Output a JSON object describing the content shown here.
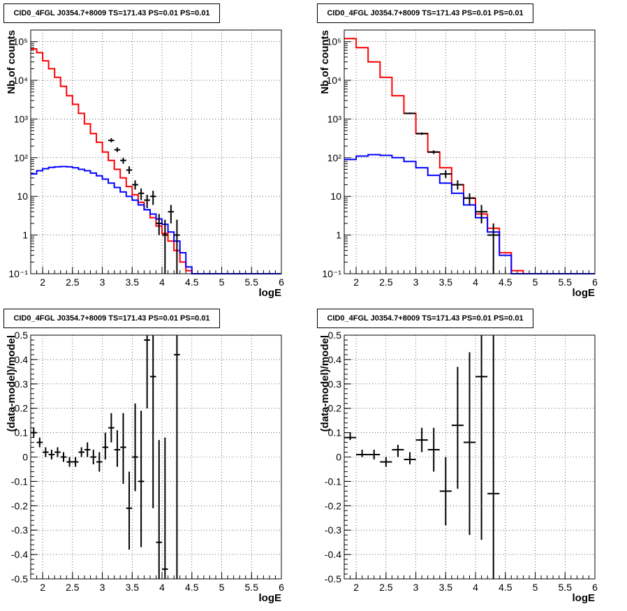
{
  "colors": {
    "total": "#ff0000",
    "component": "#0000ff",
    "data": "#000000"
  },
  "chart_data": [
    {
      "type": "line",
      "title": "CID0_4FGL J0354.7+8009 TS=171.43 PS=0.01 PS=0.01",
      "xlabel": "logE",
      "ylabel": "Nb of counts",
      "xlim": [
        1.8,
        6.0
      ],
      "ylim": [
        0.1,
        200000
      ],
      "yscale": "log",
      "grid": true,
      "xticks": [
        "2",
        "2.5",
        "3",
        "3.5",
        "4",
        "4.5",
        "5",
        "5.5",
        "6"
      ],
      "yticks": [
        "10^-1",
        "1",
        "10",
        "10^2",
        "10^3",
        "10^4",
        "10^5"
      ],
      "bin_edges": [
        1.8,
        1.9,
        2.0,
        2.1,
        2.2,
        2.3,
        2.4,
        2.5,
        2.6,
        2.7,
        2.8,
        2.9,
        3.0,
        3.1,
        3.2,
        3.3,
        3.4,
        3.5,
        3.6,
        3.7,
        3.8,
        3.9,
        4.0,
        4.1,
        4.2,
        4.3,
        4.4,
        4.5,
        4.6,
        4.7,
        4.8,
        4.9,
        5.0,
        5.1,
        5.2,
        5.3,
        5.4,
        5.5,
        5.6,
        5.7,
        5.8,
        5.9,
        6.0
      ],
      "series": [
        {
          "values": [
            65000,
            52000,
            32000,
            20000,
            12000,
            7000,
            4000,
            2400,
            1400,
            750,
            420,
            250,
            140,
            85,
            50,
            30,
            18,
            11,
            7,
            4.5,
            2.8,
            1.7,
            1.1,
            0.7,
            0.4,
            0.2,
            0.12,
            0.1,
            0.1,
            0.1,
            0.1,
            0.1,
            0.1,
            0.1,
            0.1,
            0.1,
            0.1,
            0.1,
            0.1,
            0.1,
            0.1,
            0.1
          ]
        },
        {
          "values": [
            38,
            46,
            52,
            56,
            58,
            59,
            58,
            55,
            50,
            46,
            40,
            34,
            28,
            22,
            17,
            13,
            10,
            8,
            6,
            4.5,
            3.5,
            2.6,
            1.9,
            1.2,
            0.7,
            0.35,
            0.15,
            0.1,
            0.1,
            0.1,
            0.1,
            0.1,
            0.1,
            0.1,
            0.1,
            0.1,
            0.1,
            0.1,
            0.1,
            0.1,
            0.1,
            0.1
          ]
        }
      ],
      "points": [
        {
          "x": 3.15,
          "y": 280,
          "ex": 0.05,
          "ylo": 250,
          "yhi": 320
        },
        {
          "x": 3.25,
          "y": 160,
          "ex": 0.05,
          "ylo": 140,
          "yhi": 185
        },
        {
          "x": 3.35,
          "y": 85,
          "ex": 0.05,
          "ylo": 70,
          "yhi": 100
        },
        {
          "x": 3.45,
          "y": 48,
          "ex": 0.05,
          "ylo": 38,
          "yhi": 60
        },
        {
          "x": 3.55,
          "y": 20,
          "ex": 0.05,
          "ylo": 15,
          "yhi": 26
        },
        {
          "x": 3.65,
          "y": 12,
          "ex": 0.05,
          "ylo": 8,
          "yhi": 16
        },
        {
          "x": 3.75,
          "y": 8,
          "ex": 0.05,
          "ylo": 5,
          "yhi": 11
        },
        {
          "x": 3.85,
          "y": 10,
          "ex": 0.05,
          "ylo": 6,
          "yhi": 14
        },
        {
          "x": 3.95,
          "y": 2,
          "ex": 0.05,
          "ylo": 1,
          "yhi": 3.5
        },
        {
          "x": 4.05,
          "y": 1,
          "ex": 0.05,
          "ylo": 0.1,
          "yhi": 2.5
        },
        {
          "x": 4.15,
          "y": 4,
          "ex": 0.05,
          "ylo": 2,
          "yhi": 6
        },
        {
          "x": 4.25,
          "y": 1,
          "ex": 0.05,
          "ylo": 0.1,
          "yhi": 2.5
        }
      ]
    },
    {
      "type": "line",
      "title": "CID0_4FGL J0354.7+8009 TS=171.43 PS=0.01 PS=0.01",
      "xlabel": "logE",
      "ylabel": "Nb of counts",
      "xlim": [
        1.8,
        6.0
      ],
      "ylim": [
        0.1,
        200000
      ],
      "yscale": "log",
      "grid": true,
      "xticks": [
        "2",
        "2.5",
        "3",
        "3.5",
        "4",
        "4.5",
        "5",
        "5.5",
        "6"
      ],
      "yticks": [
        "10^-1",
        "1",
        "10",
        "10^2",
        "10^3",
        "10^4",
        "10^5"
      ],
      "bin_edges": [
        1.8,
        2.0,
        2.2,
        2.4,
        2.6,
        2.8,
        3.0,
        3.2,
        3.4,
        3.6,
        3.8,
        4.0,
        4.2,
        4.4,
        4.6,
        4.8,
        5.0,
        5.2,
        5.4,
        5.6,
        5.8,
        6.0
      ],
      "series": [
        {
          "values": [
            120000,
            70000,
            30000,
            12000,
            4000,
            1400,
            420,
            140,
            55,
            20,
            9,
            3.5,
            1.5,
            0.35,
            0.12,
            0.1,
            0.1,
            0.1,
            0.1,
            0.1,
            0.1
          ]
        },
        {
          "values": [
            90,
            110,
            120,
            115,
            100,
            80,
            55,
            35,
            22,
            12,
            6,
            2.8,
            1.2,
            0.3,
            0.1,
            0.1,
            0.1,
            0.1,
            0.1,
            0.1,
            0.1
          ]
        }
      ],
      "points": [
        {
          "x": 2.9,
          "y": 1400,
          "ex": 0.1,
          "ylo": 1330,
          "yhi": 1470
        },
        {
          "x": 3.1,
          "y": 420,
          "ex": 0.1,
          "ylo": 390,
          "yhi": 450
        },
        {
          "x": 3.3,
          "y": 140,
          "ex": 0.1,
          "ylo": 125,
          "yhi": 155
        },
        {
          "x": 3.5,
          "y": 38,
          "ex": 0.1,
          "ylo": 30,
          "yhi": 47
        },
        {
          "x": 3.7,
          "y": 20,
          "ex": 0.1,
          "ylo": 15,
          "yhi": 26
        },
        {
          "x": 3.9,
          "y": 9,
          "ex": 0.1,
          "ylo": 6,
          "yhi": 12
        },
        {
          "x": 4.1,
          "y": 4,
          "ex": 0.1,
          "ylo": 2,
          "yhi": 6
        },
        {
          "x": 4.3,
          "y": 1,
          "ex": 0.1,
          "ylo": 0.1,
          "yhi": 2
        }
      ]
    },
    {
      "type": "scatter",
      "title": "CID0_4FGL J0354.7+8009 TS=171.43 PS=0.01 PS=0.01",
      "xlabel": "logE",
      "ylabel": "(data-model)/model",
      "xlim": [
        1.8,
        6.0
      ],
      "ylim": [
        -0.5,
        0.5
      ],
      "grid": true,
      "xticks": [
        "2",
        "2.5",
        "3",
        "3.5",
        "4",
        "4.5",
        "5",
        "5.5",
        "6"
      ],
      "yticks": [
        "-0.5",
        "-0.4",
        "-0.3",
        "-0.2",
        "-0.1",
        "0",
        "0.1",
        "0.2",
        "0.3",
        "0.4",
        "0.5"
      ],
      "points": [
        {
          "x": 1.85,
          "y": 0.1,
          "ex": 0.05,
          "ylo": 0.08,
          "yhi": 0.12
        },
        {
          "x": 1.95,
          "y": 0.06,
          "ex": 0.05,
          "ylo": 0.04,
          "yhi": 0.08
        },
        {
          "x": 2.05,
          "y": 0.02,
          "ex": 0.05,
          "ylo": 0.0,
          "yhi": 0.04
        },
        {
          "x": 2.15,
          "y": 0.01,
          "ex": 0.05,
          "ylo": -0.01,
          "yhi": 0.03
        },
        {
          "x": 2.25,
          "y": 0.02,
          "ex": 0.05,
          "ylo": 0.0,
          "yhi": 0.04
        },
        {
          "x": 2.35,
          "y": 0.0,
          "ex": 0.05,
          "ylo": -0.02,
          "yhi": 0.02
        },
        {
          "x": 2.45,
          "y": -0.02,
          "ex": 0.05,
          "ylo": -0.04,
          "yhi": 0.0
        },
        {
          "x": 2.55,
          "y": -0.02,
          "ex": 0.05,
          "ylo": -0.04,
          "yhi": 0.0
        },
        {
          "x": 2.65,
          "y": 0.02,
          "ex": 0.05,
          "ylo": 0.0,
          "yhi": 0.04
        },
        {
          "x": 2.75,
          "y": 0.03,
          "ex": 0.05,
          "ylo": 0.0,
          "yhi": 0.06
        },
        {
          "x": 2.85,
          "y": 0.0,
          "ex": 0.05,
          "ylo": -0.03,
          "yhi": 0.03
        },
        {
          "x": 2.95,
          "y": -0.02,
          "ex": 0.05,
          "ylo": -0.06,
          "yhi": 0.02
        },
        {
          "x": 3.05,
          "y": 0.04,
          "ex": 0.05,
          "ylo": -0.01,
          "yhi": 0.1
        },
        {
          "x": 3.15,
          "y": 0.12,
          "ex": 0.05,
          "ylo": 0.06,
          "yhi": 0.18
        },
        {
          "x": 3.25,
          "y": 0.03,
          "ex": 0.05,
          "ylo": -0.04,
          "yhi": 0.11
        },
        {
          "x": 3.35,
          "y": 0.04,
          "ex": 0.05,
          "ylo": -0.11,
          "yhi": 0.18
        },
        {
          "x": 3.45,
          "y": -0.21,
          "ex": 0.05,
          "ylo": -0.38,
          "yhi": -0.06
        },
        {
          "x": 3.55,
          "y": 0.0,
          "ex": 0.05,
          "ylo": -0.14,
          "yhi": 0.22
        },
        {
          "x": 3.65,
          "y": -0.1,
          "ex": 0.05,
          "ylo": -0.37,
          "yhi": 0.19
        },
        {
          "x": 3.75,
          "y": 0.48,
          "ex": 0.05,
          "ylo": 0.2,
          "yhi": 0.5
        },
        {
          "x": 3.85,
          "y": 0.33,
          "ex": 0.05,
          "ylo": -0.21,
          "yhi": 0.5
        },
        {
          "x": 3.95,
          "y": -0.35,
          "ex": 0.05,
          "ylo": -0.5,
          "yhi": 0.07
        },
        {
          "x": 4.05,
          "y": -0.46,
          "ex": 0.05,
          "ylo": -0.5,
          "yhi": 0.08
        },
        {
          "x": 4.25,
          "y": 0.42,
          "ex": 0.05,
          "ylo": -0.5,
          "yhi": 0.5
        }
      ]
    },
    {
      "type": "scatter",
      "title": "CID0_4FGL J0354.7+8009 TS=171.43 PS=0.01 PS=0.01",
      "xlabel": "logE",
      "ylabel": "(data-model)/model",
      "xlim": [
        1.8,
        6.0
      ],
      "ylim": [
        -0.5,
        0.5
      ],
      "grid": true,
      "xticks": [
        "2",
        "2.5",
        "3",
        "3.5",
        "4",
        "4.5",
        "5",
        "5.5",
        "6"
      ],
      "yticks": [
        "-0.5",
        "-0.4",
        "-0.3",
        "-0.2",
        "-0.1",
        "0",
        "0.1",
        "0.2",
        "0.3",
        "0.4",
        "0.5"
      ],
      "points": [
        {
          "x": 1.9,
          "y": 0.08,
          "ex": 0.1,
          "ylo": 0.07,
          "yhi": 0.1
        },
        {
          "x": 2.1,
          "y": 0.01,
          "ex": 0.1,
          "ylo": 0.0,
          "yhi": 0.03
        },
        {
          "x": 2.3,
          "y": 0.01,
          "ex": 0.1,
          "ylo": -0.01,
          "yhi": 0.03
        },
        {
          "x": 2.5,
          "y": -0.02,
          "ex": 0.1,
          "ylo": -0.04,
          "yhi": 0.0
        },
        {
          "x": 2.7,
          "y": 0.03,
          "ex": 0.1,
          "ylo": 0.0,
          "yhi": 0.05
        },
        {
          "x": 2.9,
          "y": -0.01,
          "ex": 0.1,
          "ylo": -0.03,
          "yhi": 0.02
        },
        {
          "x": 3.1,
          "y": 0.07,
          "ex": 0.1,
          "ylo": 0.02,
          "yhi": 0.12
        },
        {
          "x": 3.3,
          "y": 0.03,
          "ex": 0.1,
          "ylo": -0.06,
          "yhi": 0.12
        },
        {
          "x": 3.5,
          "y": -0.14,
          "ex": 0.1,
          "ylo": -0.28,
          "yhi": 0.0
        },
        {
          "x": 3.7,
          "y": 0.13,
          "ex": 0.1,
          "ylo": -0.13,
          "yhi": 0.37
        },
        {
          "x": 3.9,
          "y": 0.06,
          "ex": 0.1,
          "ylo": -0.32,
          "yhi": 0.43
        },
        {
          "x": 4.1,
          "y": 0.33,
          "ex": 0.1,
          "ylo": -0.34,
          "yhi": 0.5
        },
        {
          "x": 4.3,
          "y": -0.15,
          "ex": 0.1,
          "ylo": -0.5,
          "yhi": 0.5
        }
      ]
    }
  ]
}
